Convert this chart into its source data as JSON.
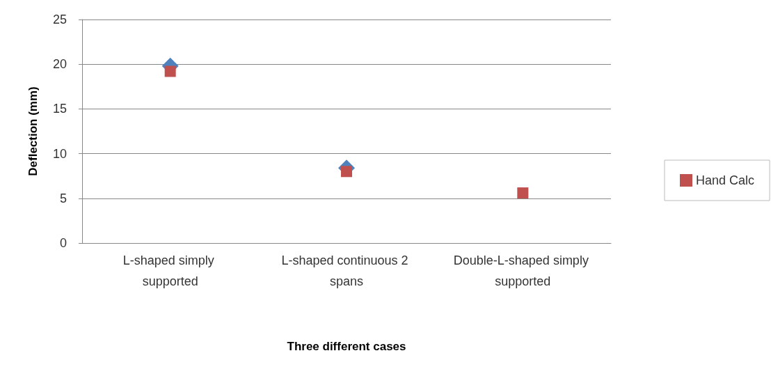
{
  "chart_data": {
    "type": "scatter",
    "xlabel": "Three different cases",
    "ylabel": "Deflection (mm)",
    "categories": [
      "L-shaped simply supported",
      "L-shaped continuous 2 spans",
      "Double-L-shaped simply supported"
    ],
    "series": [
      {
        "color": "#4f81bd",
        "marker": "diamond",
        "values": [
          19.8,
          8.4,
          null
        ]
      },
      {
        "name": "Hand Calc",
        "color": "#c0504d",
        "marker": "square",
        "values": [
          19.2,
          8.0,
          5.6
        ]
      }
    ],
    "ylim": [
      0,
      25
    ],
    "yticks": [
      0,
      5,
      10,
      15,
      20,
      25
    ],
    "grid": "y",
    "legend": "right"
  }
}
